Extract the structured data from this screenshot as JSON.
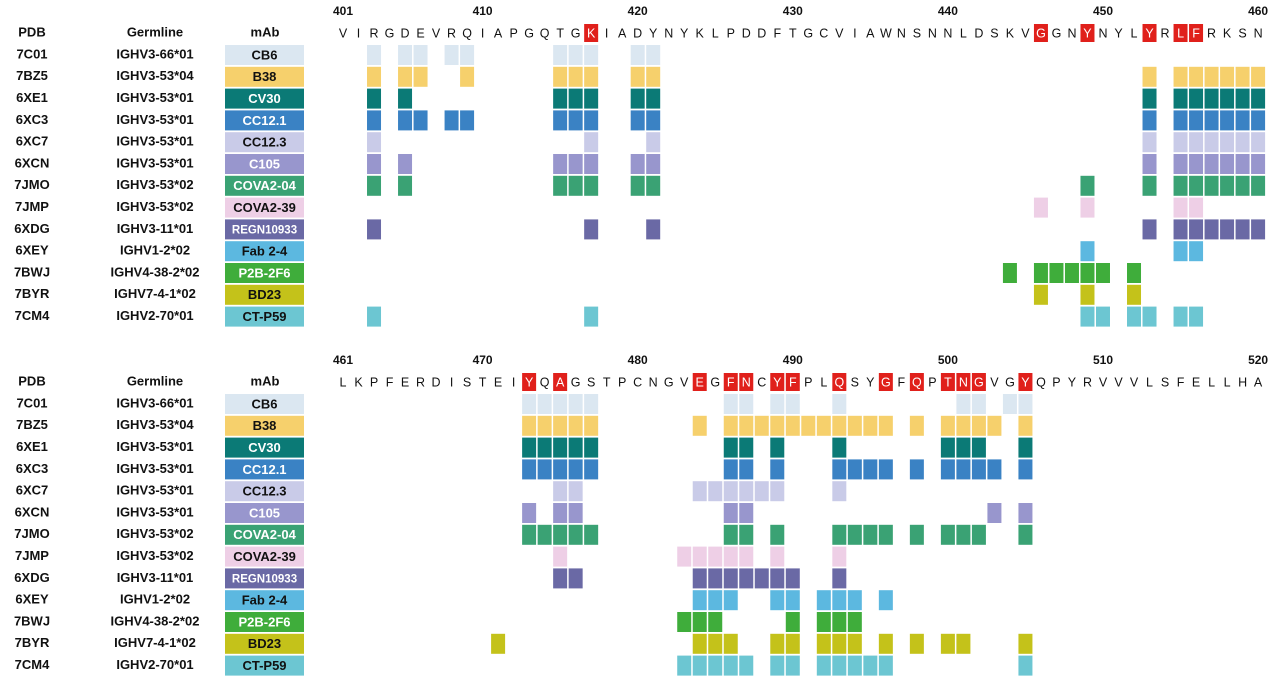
{
  "panels": [
    {
      "ruler": [
        401,
        410,
        420,
        430,
        440,
        450,
        460
      ],
      "sequence": [
        "V",
        "I",
        "R",
        "G",
        "D",
        "E",
        "V",
        "R",
        "Q",
        "I",
        "A",
        "P",
        "G",
        "Q",
        "T",
        "G",
        "K",
        "I",
        "A",
        "D",
        "Y",
        "N",
        "Y",
        "K",
        "L",
        "P",
        "D",
        "D",
        "F",
        "T",
        "G",
        "C",
        "V",
        "I",
        "A",
        "W",
        "N",
        "S",
        "N",
        "N",
        "L",
        "D",
        "S",
        "K",
        "V",
        "G",
        "G",
        "N",
        "Y",
        "N",
        "Y",
        "L",
        "Y",
        "R",
        "L",
        "F",
        "R",
        "K",
        "S",
        "N"
      ],
      "highlighted": [
        417,
        446,
        449,
        453,
        455,
        456
      ],
      "headers": {
        "pdb": "PDB",
        "germline": "Germline",
        "mab": "mAb"
      },
      "rows": [
        {
          "pdb": "7C01",
          "germline": "IGHV3-66*01",
          "mab": "CB6",
          "color": "#dbe7f1",
          "text_color": "#111111",
          "contacts": [
            403,
            405,
            406,
            408,
            409,
            415,
            416,
            417,
            420,
            421
          ]
        },
        {
          "pdb": "7BZ5",
          "germline": "IGHV3-53*04",
          "mab": "B38",
          "color": "#f6d06c",
          "text_color": "#111111",
          "contacts": [
            403,
            405,
            406,
            409,
            415,
            416,
            417,
            420,
            421,
            453,
            455,
            456,
            457,
            458,
            459,
            460
          ]
        },
        {
          "pdb": "6XE1",
          "germline": "IGHV3-53*01",
          "mab": "CV30",
          "color": "#0b7a76",
          "text_color": "#ffffff",
          "contacts": [
            403,
            405,
            415,
            416,
            417,
            420,
            421,
            453,
            455,
            456,
            457,
            458,
            459,
            460
          ]
        },
        {
          "pdb": "6XC3",
          "germline": "IGHV3-53*01",
          "mab": "CC12.1",
          "color": "#3a82c4",
          "text_color": "#ffffff",
          "contacts": [
            403,
            405,
            406,
            408,
            409,
            415,
            416,
            417,
            420,
            421,
            453,
            455,
            456,
            457,
            458,
            459,
            460
          ]
        },
        {
          "pdb": "6XC7",
          "germline": "IGHV3-53*01",
          "mab": "CC12.3",
          "color": "#c9cbe8",
          "text_color": "#111111",
          "contacts": [
            403,
            417,
            421,
            453,
            455,
            456,
            457,
            458,
            459,
            460
          ]
        },
        {
          "pdb": "6XCN",
          "germline": "IGHV3-53*01",
          "mab": "C105",
          "color": "#9896cd",
          "text_color": "#ffffff",
          "contacts": [
            403,
            405,
            415,
            416,
            417,
            420,
            421,
            453,
            455,
            456,
            457,
            458,
            459,
            460
          ]
        },
        {
          "pdb": "7JMO",
          "germline": "IGHV3-53*02",
          "mab": "COVA2-04",
          "color": "#3aa274",
          "text_color": "#ffffff",
          "contacts": [
            403,
            405,
            415,
            416,
            417,
            420,
            421,
            449,
            453,
            455,
            456,
            457,
            458,
            459,
            460
          ]
        },
        {
          "pdb": "7JMP",
          "germline": "IGHV3-53*02",
          "mab": "COVA2-39",
          "color": "#eecfe6",
          "text_color": "#111111",
          "contacts": [
            446,
            449,
            455,
            456
          ]
        },
        {
          "pdb": "6XDG",
          "germline": "IGHV3-11*01",
          "mab": "REGN10933",
          "color": "#6a69a5",
          "text_color": "#ffffff",
          "contacts": [
            403,
            417,
            421,
            453,
            455,
            456,
            457,
            458,
            459,
            460
          ]
        },
        {
          "pdb": "6XEY",
          "germline": "IGHV1-2*02",
          "mab": "Fab 2-4",
          "color": "#5cb8e0",
          "text_color": "#111111",
          "contacts": [
            449,
            455,
            456
          ]
        },
        {
          "pdb": "7BWJ",
          "germline": "IGHV4-38-2*02",
          "mab": "P2B-2F6",
          "color": "#3fad3b",
          "text_color": "#ffffff",
          "contacts": [
            444,
            446,
            447,
            448,
            449,
            450,
            452
          ]
        },
        {
          "pdb": "7BYR",
          "germline": "IGHV7-4-1*02",
          "mab": "BD23",
          "color": "#c4c21a",
          "text_color": "#111111",
          "contacts": [
            446,
            449,
            452
          ]
        },
        {
          "pdb": "7CM4",
          "germline": "IGHV2-70*01",
          "mab": "CT-P59",
          "color": "#6cc6d2",
          "text_color": "#111111",
          "contacts": [
            403,
            417,
            449,
            450,
            452,
            453,
            455,
            456
          ]
        }
      ]
    },
    {
      "ruler": [
        461,
        470,
        480,
        490,
        500,
        510,
        520
      ],
      "sequence": [
        "L",
        "K",
        "P",
        "F",
        "E",
        "R",
        "D",
        "I",
        "S",
        "T",
        "E",
        "I",
        "Y",
        "Q",
        "A",
        "G",
        "S",
        "T",
        "P",
        "C",
        "N",
        "G",
        "V",
        "E",
        "G",
        "F",
        "N",
        "C",
        "Y",
        "F",
        "P",
        "L",
        "Q",
        "S",
        "Y",
        "G",
        "F",
        "Q",
        "P",
        "T",
        "N",
        "G",
        "V",
        "G",
        "Y",
        "Q",
        "P",
        "Y",
        "R",
        "V",
        "V",
        "V",
        "L",
        "S",
        "F",
        "E",
        "L",
        "L",
        "H",
        "A"
      ],
      "highlighted": [
        473,
        475,
        484,
        486,
        487,
        489,
        490,
        493,
        496,
        498,
        500,
        501,
        502,
        505
      ],
      "headers": {
        "pdb": "PDB",
        "germline": "Germline",
        "mab": "mAb"
      },
      "rows": [
        {
          "pdb": "7C01",
          "germline": "IGHV3-66*01",
          "mab": "CB6",
          "color": "#dbe7f1",
          "text_color": "#111111",
          "contacts": [
            473,
            474,
            475,
            476,
            477,
            486,
            487,
            489,
            490,
            493,
            501,
            502,
            504,
            505
          ]
        },
        {
          "pdb": "7BZ5",
          "germline": "IGHV3-53*04",
          "mab": "B38",
          "color": "#f6d06c",
          "text_color": "#111111",
          "contacts": [
            473,
            474,
            475,
            476,
            477,
            484,
            486,
            487,
            488,
            489,
            490,
            491,
            492,
            493,
            494,
            495,
            496,
            498,
            500,
            501,
            502,
            503,
            505
          ]
        },
        {
          "pdb": "6XE1",
          "germline": "IGHV3-53*01",
          "mab": "CV30",
          "color": "#0b7a76",
          "text_color": "#ffffff",
          "contacts": [
            473,
            474,
            475,
            476,
            477,
            486,
            487,
            489,
            493,
            500,
            501,
            502,
            505
          ]
        },
        {
          "pdb": "6XC3",
          "germline": "IGHV3-53*01",
          "mab": "CC12.1",
          "color": "#3a82c4",
          "text_color": "#ffffff",
          "contacts": [
            473,
            474,
            475,
            476,
            477,
            486,
            487,
            489,
            493,
            494,
            495,
            496,
            498,
            500,
            501,
            502,
            503,
            505
          ]
        },
        {
          "pdb": "6XC7",
          "germline": "IGHV3-53*01",
          "mab": "CC12.3",
          "color": "#c9cbe8",
          "text_color": "#111111",
          "contacts": [
            475,
            476,
            484,
            485,
            486,
            487,
            488,
            489,
            493
          ]
        },
        {
          "pdb": "6XCN",
          "germline": "IGHV3-53*01",
          "mab": "C105",
          "color": "#9896cd",
          "text_color": "#ffffff",
          "contacts": [
            473,
            475,
            476,
            486,
            487,
            503,
            505
          ]
        },
        {
          "pdb": "7JMO",
          "germline": "IGHV3-53*02",
          "mab": "COVA2-04",
          "color": "#3aa274",
          "text_color": "#ffffff",
          "contacts": [
            473,
            474,
            475,
            476,
            477,
            486,
            487,
            489,
            493,
            494,
            495,
            496,
            498,
            500,
            501,
            502,
            505
          ]
        },
        {
          "pdb": "7JMP",
          "germline": "IGHV3-53*02",
          "mab": "COVA2-39",
          "color": "#eecfe6",
          "text_color": "#111111",
          "contacts": [
            475,
            483,
            484,
            485,
            486,
            487,
            489,
            493
          ]
        },
        {
          "pdb": "6XDG",
          "germline": "IGHV3-11*01",
          "mab": "REGN10933",
          "color": "#6a69a5",
          "text_color": "#ffffff",
          "contacts": [
            475,
            476,
            484,
            485,
            486,
            487,
            488,
            489,
            490,
            493
          ]
        },
        {
          "pdb": "6XEY",
          "germline": "IGHV1-2*02",
          "mab": "Fab 2-4",
          "color": "#5cb8e0",
          "text_color": "#111111",
          "contacts": [
            484,
            485,
            486,
            489,
            490,
            492,
            493,
            494,
            496
          ]
        },
        {
          "pdb": "7BWJ",
          "germline": "IGHV4-38-2*02",
          "mab": "P2B-2F6",
          "color": "#3fad3b",
          "text_color": "#ffffff",
          "contacts": [
            483,
            484,
            485,
            490,
            492,
            493,
            494
          ]
        },
        {
          "pdb": "7BYR",
          "germline": "IGHV7-4-1*02",
          "mab": "BD23",
          "color": "#c4c21a",
          "text_color": "#111111",
          "contacts": [
            471,
            484,
            485,
            486,
            489,
            490,
            492,
            493,
            494,
            496,
            498,
            500,
            501,
            505
          ]
        },
        {
          "pdb": "7CM4",
          "germline": "IGHV2-70*01",
          "mab": "CT-P59",
          "color": "#6cc6d2",
          "text_color": "#111111",
          "contacts": [
            483,
            484,
            485,
            486,
            487,
            489,
            490,
            492,
            493,
            494,
            495,
            496,
            505
          ]
        }
      ]
    }
  ]
}
